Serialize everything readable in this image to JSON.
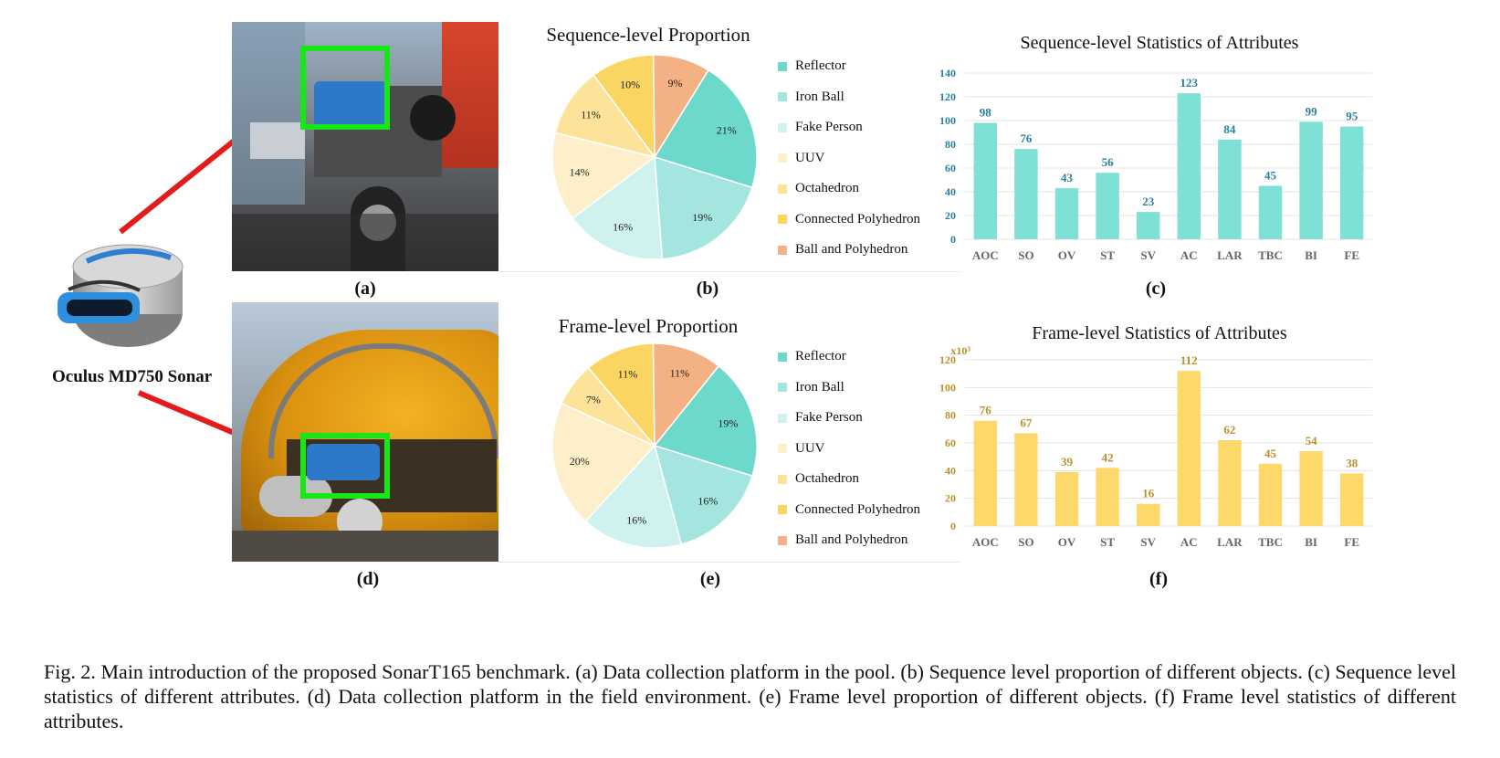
{
  "sonar_label": "Oculus MD750 Sonar",
  "panel_labels": {
    "a": "(a)",
    "b": "(b)",
    "c": "(c)",
    "d": "(d)",
    "e": "(e)",
    "f": "(f)"
  },
  "colors": {
    "Reflector": "#6dd9cb",
    "Iron Ball": "#a4e6df",
    "Fake Person": "#cff2ee",
    "UUV": "#fdefc9",
    "Octahedron": "#fde39a",
    "Connected Polyhedron": "#fbd561",
    "Ball and Polyhedron": "#f4b184",
    "teal_bar": "#7fe0d5",
    "gold_bar": "#fdd86a",
    "teal_text": "#2a7f99",
    "gold_text": "#b8912c",
    "red_arrow": "#e31b1b",
    "green_box": "#17e617"
  },
  "pie_b": {
    "title": "Sequence-level Proportion",
    "legend": [
      "Reflector",
      "Iron Ball",
      "Fake Person",
      "UUV",
      "Octahedron",
      "Connected Polyhedron",
      "Ball and Polyhedron"
    ]
  },
  "pie_e": {
    "title": "Frame-level Proportion",
    "legend": [
      "Reflector",
      "Iron Ball",
      "Fake Person",
      "UUV",
      "Octahedron",
      "Connected Polyhedron",
      "Ball and Polyhedron"
    ]
  },
  "bar_c": {
    "title": "Sequence-level Statistics of Attributes"
  },
  "bar_f": {
    "title": "Frame-level Statistics of Attributes",
    "unit_label": "x10³"
  },
  "caption": "Fig. 2.  Main introduction of the proposed SonarT165 benchmark. (a) Data collection platform in the pool. (b) Sequence level proportion of different objects. (c) Sequence level statistics of different attributes. (d) Data collection platform in the field environment. (e) Frame level proportion of different objects. (f) Frame level statistics of different attributes.",
  "chart_data": [
    {
      "type": "pie",
      "title": "Sequence-level Proportion",
      "categories": [
        "Reflector",
        "Iron Ball",
        "Fake Person",
        "UUV",
        "Octahedron",
        "Connected Polyhedron",
        "Ball and Polyhedron"
      ],
      "values": [
        21,
        19,
        16,
        14,
        11,
        10,
        9
      ],
      "labels": [
        "21%",
        "19%",
        "16%",
        "14%",
        "11%",
        "10%",
        "9%"
      ],
      "legend": "right"
    },
    {
      "type": "bar",
      "title": "Sequence-level Statistics of Attributes",
      "categories": [
        "AOC",
        "SO",
        "OV",
        "ST",
        "SV",
        "AC",
        "LAR",
        "TBC",
        "BI",
        "FE"
      ],
      "values": [
        98,
        76,
        43,
        56,
        23,
        123,
        84,
        45,
        99,
        95
      ],
      "yticks": [
        0,
        20,
        40,
        60,
        80,
        100,
        120,
        140
      ],
      "ylim": [
        0,
        140
      ],
      "grid": true
    },
    {
      "type": "pie",
      "title": "Frame-level Proportion",
      "categories": [
        "Reflector",
        "Iron Ball",
        "Fake Person",
        "UUV",
        "Octahedron",
        "Connected Polyhedron",
        "Ball and Polyhedron"
      ],
      "values": [
        19,
        16,
        16,
        20,
        7,
        11,
        11
      ],
      "labels": [
        "19%",
        "16%",
        "16%",
        "20%",
        "7%",
        "11%",
        "11%"
      ],
      "legend": "right"
    },
    {
      "type": "bar",
      "title": "Frame-level Statistics of Attributes",
      "categories": [
        "AOC",
        "SO",
        "OV",
        "ST",
        "SV",
        "AC",
        "LAR",
        "TBC",
        "BI",
        "FE"
      ],
      "values": [
        76,
        67,
        39,
        42,
        16,
        112,
        62,
        45,
        54,
        38
      ],
      "yticks": [
        0,
        20,
        40,
        60,
        80,
        100,
        120
      ],
      "ylim": [
        0,
        120
      ],
      "unit_label": "x10³",
      "grid": true
    }
  ]
}
